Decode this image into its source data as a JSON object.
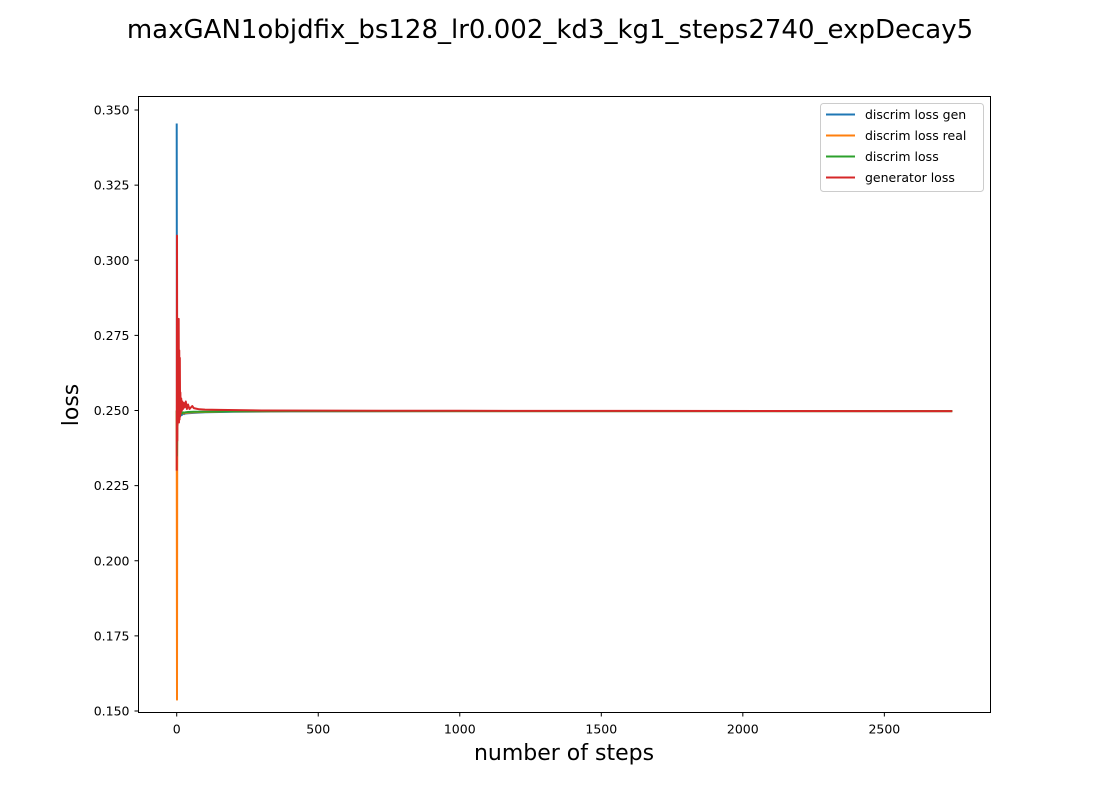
{
  "chart_data": {
    "type": "line",
    "title": "maxGAN1objdfix_bs128_lr0.002_kd3_kg1_steps2740_expDecay5",
    "xlabel": "number of steps",
    "ylabel": "loss",
    "xlim": [
      -135,
      2875
    ],
    "ylim": [
      0.1495,
      0.3545
    ],
    "xticks": [
      0,
      500,
      1000,
      1500,
      2000,
      2500
    ],
    "yticks": [
      0.15,
      0.175,
      0.2,
      0.225,
      0.25,
      0.275,
      0.3,
      0.325,
      0.35
    ],
    "x_tick_labels": [
      "0",
      "500",
      "1000",
      "1500",
      "2000",
      "2500"
    ],
    "y_tick_labels": [
      "0.150",
      "0.175",
      "0.200",
      "0.225",
      "0.250",
      "0.275",
      "0.300",
      "0.325",
      "0.350"
    ],
    "grid": false,
    "legend_position": "top-right",
    "series": [
      {
        "name": "discrim loss gen",
        "color": "#1f77b4",
        "x": [
          0,
          1,
          2,
          3,
          4,
          5,
          6,
          8,
          10,
          12,
          15,
          18,
          22,
          26,
          30,
          40,
          60,
          100,
          200,
          400,
          1000,
          2740
        ],
        "y": [
          0.3455,
          0.23,
          0.25,
          0.245,
          0.253,
          0.248,
          0.252,
          0.247,
          0.25,
          0.248,
          0.249,
          0.2485,
          0.249,
          0.2488,
          0.249,
          0.2491,
          0.2492,
          0.2494,
          0.2496,
          0.2497,
          0.2498,
          0.2498
        ]
      },
      {
        "name": "discrim loss real",
        "color": "#ff7f0e",
        "x": [
          0,
          1,
          2,
          3,
          4,
          5,
          6,
          8,
          10,
          12,
          15,
          18,
          22,
          26,
          30,
          40,
          60,
          100,
          200,
          400,
          1000,
          2740
        ],
        "y": [
          0.25,
          0.1538,
          0.26,
          0.245,
          0.252,
          0.246,
          0.251,
          0.248,
          0.25,
          0.249,
          0.2495,
          0.249,
          0.2492,
          0.249,
          0.2492,
          0.2493,
          0.2494,
          0.2495,
          0.2497,
          0.2498,
          0.2498,
          0.2498
        ]
      },
      {
        "name": "discrim loss",
        "color": "#2ca02c",
        "x": [
          0,
          1,
          2,
          3,
          4,
          5,
          6,
          8,
          10,
          12,
          15,
          18,
          22,
          26,
          30,
          40,
          60,
          100,
          200,
          400,
          1000,
          2740
        ],
        "y": [
          0.25,
          0.235,
          0.255,
          0.248,
          0.252,
          0.247,
          0.251,
          0.2475,
          0.2505,
          0.2485,
          0.2495,
          0.249,
          0.2494,
          0.2492,
          0.2494,
          0.2495,
          0.2496,
          0.2496,
          0.2497,
          0.2498,
          0.2498,
          0.2498
        ]
      },
      {
        "name": "generator loss",
        "color": "#d62728",
        "x": [
          0,
          1,
          2,
          3,
          4,
          5,
          6,
          7,
          8,
          9,
          10,
          11,
          12,
          13,
          14,
          16,
          18,
          20,
          22,
          25,
          28,
          32,
          36,
          40,
          45,
          50,
          55,
          60,
          70,
          80,
          100,
          150,
          300,
          1000,
          2740
        ],
        "y": [
          0.23,
          0.3082,
          0.24,
          0.264,
          0.247,
          0.256,
          0.248,
          0.2805,
          0.246,
          0.27,
          0.247,
          0.2675,
          0.248,
          0.256,
          0.249,
          0.254,
          0.25,
          0.253,
          0.2505,
          0.2525,
          0.251,
          0.253,
          0.2505,
          0.252,
          0.2505,
          0.251,
          0.2515,
          0.2508,
          0.2506,
          0.2504,
          0.2503,
          0.2502,
          0.25,
          0.2499,
          0.2498
        ]
      }
    ]
  }
}
